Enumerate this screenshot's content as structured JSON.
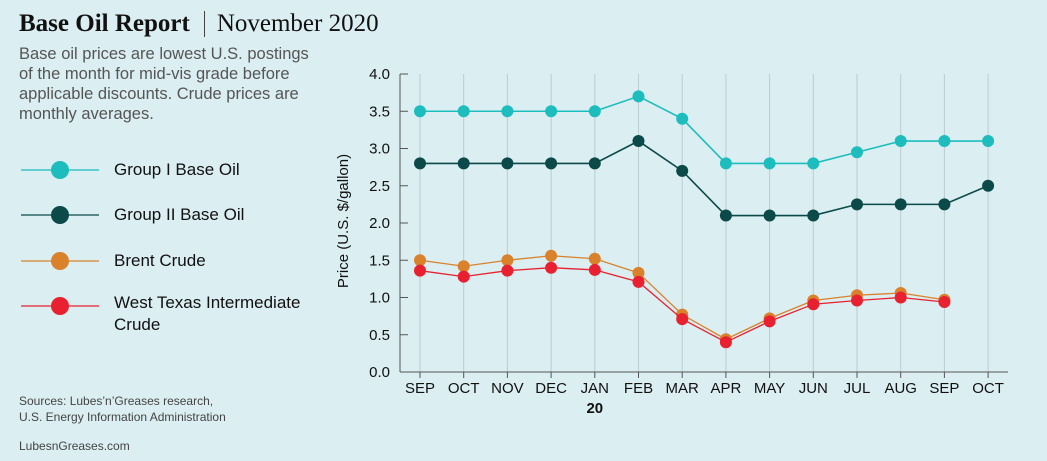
{
  "header": {
    "title": "Base Oil Report",
    "date": "November 2020",
    "description": "Base oil prices are lowest U.S. postings of the month for mid-vis grade before applicable discounts. Crude prices are monthly averages."
  },
  "footer": {
    "sources_line1": "Sources: Lubes’n’Greases research,",
    "sources_line2": "U.S. Energy Information Administration",
    "site": "LubesnGreases.com"
  },
  "chart_data": {
    "type": "line",
    "categories": [
      "SEP",
      "OCT",
      "NOV",
      "DEC",
      "JAN",
      "FEB",
      "MAR",
      "APR",
      "MAY",
      "JUN",
      "JUL",
      "AUG",
      "SEP",
      "OCT"
    ],
    "year_marker": {
      "category_index": 4,
      "label": "20"
    },
    "ylabel": "Price (U.S. $/gallon)",
    "xlabel": "",
    "ylim": [
      0,
      4
    ],
    "yticks": [
      "0.0",
      "0.5",
      "1.0",
      "1.5",
      "2.0",
      "2.5",
      "3.0",
      "3.5",
      "4.0"
    ],
    "grid": "vertical",
    "legend_position": "left",
    "series": [
      {
        "name": "Group I Base Oil",
        "color": "#1dbdbd",
        "values": [
          3.5,
          3.5,
          3.5,
          3.5,
          3.5,
          3.7,
          3.4,
          2.8,
          2.8,
          2.8,
          2.95,
          3.1,
          3.1,
          3.1
        ]
      },
      {
        "name": "Group II Base Oil",
        "color": "#0b4a48",
        "values": [
          2.8,
          2.8,
          2.8,
          2.8,
          2.8,
          3.1,
          2.7,
          2.1,
          2.1,
          2.1,
          2.25,
          2.25,
          2.25,
          2.5
        ]
      },
      {
        "name": "Brent Crude",
        "color": "#d9822b",
        "values": [
          1.5,
          1.42,
          1.5,
          1.56,
          1.52,
          1.33,
          0.77,
          0.44,
          0.72,
          0.96,
          1.03,
          1.06,
          0.97,
          null
        ]
      },
      {
        "name": "West Texas Intermediate Crude",
        "color": "#e8202f",
        "values": [
          1.36,
          1.28,
          1.36,
          1.4,
          1.37,
          1.21,
          0.71,
          0.4,
          0.68,
          0.91,
          0.96,
          1.0,
          0.94,
          null
        ]
      }
    ]
  }
}
